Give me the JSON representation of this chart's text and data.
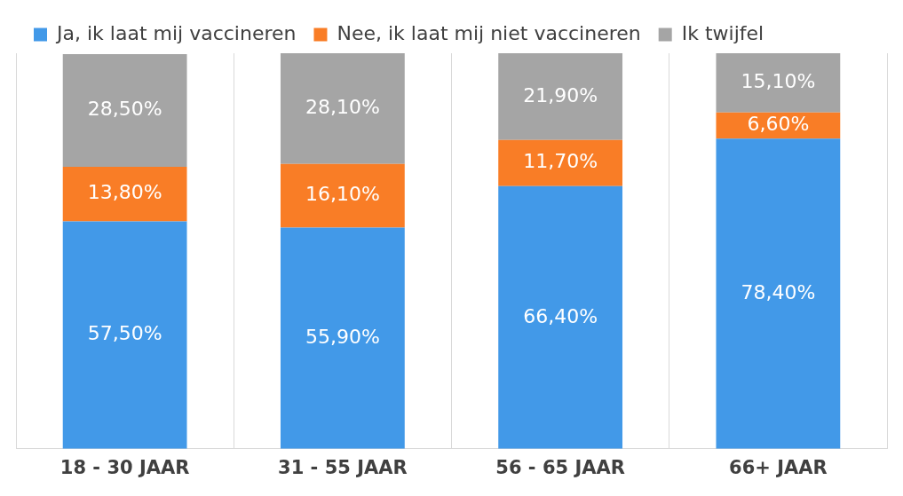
{
  "chart_data": {
    "type": "bar",
    "stacked": true,
    "categories": [
      "18 - 30 JAAR",
      "31 - 55 JAAR",
      "56 - 65 JAAR",
      "66+ JAAR"
    ],
    "series": [
      {
        "name": "Ja, ik laat mij vaccineren",
        "color": "#4299e8",
        "values": [
          57.5,
          55.9,
          66.4,
          78.4
        ],
        "value_labels": [
          "57,50%",
          "55,90%",
          "66,40%",
          "78,40%"
        ]
      },
      {
        "name": "Nee, ik laat mij niet vaccineren",
        "color": "#f97d26",
        "values": [
          13.8,
          16.1,
          11.7,
          6.6
        ],
        "value_labels": [
          "13,80%",
          "16,10%",
          "11,70%",
          "6,60%"
        ]
      },
      {
        "name": "Ik twijfel",
        "color": "#a5a5a5",
        "values": [
          28.5,
          28.1,
          21.9,
          15.1
        ],
        "value_labels": [
          "28,50%",
          "28,10%",
          "21,90%",
          "15,10%"
        ]
      }
    ],
    "ylim": [
      0,
      100
    ],
    "tick_labels": "x",
    "grid": "x",
    "legend": "top"
  }
}
